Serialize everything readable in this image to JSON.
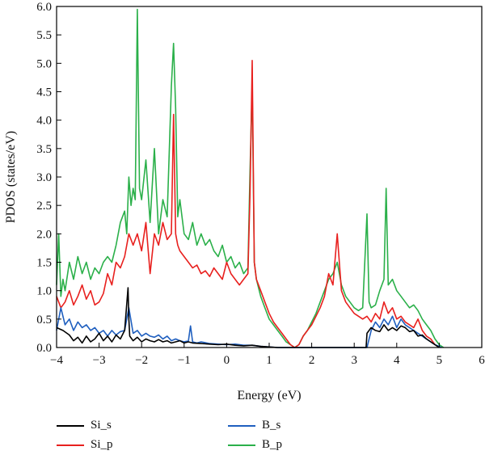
{
  "chart_data": {
    "type": "line",
    "title": "",
    "xlabel": "Energy (eV)",
    "ylabel": "PDOS (states/eV)",
    "xlim": [
      -4,
      6
    ],
    "ylim": [
      0,
      6
    ],
    "xticks": [
      "−4",
      "−3",
      "−2",
      "−1",
      "0",
      "1",
      "2",
      "3",
      "4",
      "5",
      "6"
    ],
    "yticks": [
      "0.0",
      "0.5",
      "1.0",
      "1.5",
      "2.0",
      "2.5",
      "3.0",
      "3.5",
      "4.0",
      "4.5",
      "5.0",
      "5.5",
      "6.0"
    ],
    "grid": false,
    "legend_position": "bottom",
    "series": [
      {
        "name": "Si_s",
        "color": "#000000",
        "x": [
          -4.0,
          -3.85,
          -3.7,
          -3.6,
          -3.5,
          -3.4,
          -3.3,
          -3.2,
          -3.1,
          -3.0,
          -2.9,
          -2.8,
          -2.7,
          -2.6,
          -2.5,
          -2.4,
          -2.32,
          -2.3,
          -2.28,
          -2.2,
          -2.1,
          -2.0,
          -1.9,
          -1.8,
          -1.7,
          -1.6,
          -1.5,
          -1.4,
          -1.3,
          -1.2,
          -1.1,
          -1.0,
          -0.9,
          -0.8,
          -0.6,
          -0.4,
          -0.2,
          0.0,
          0.2,
          0.4,
          0.6,
          0.8,
          1.0,
          1.2,
          1.4,
          1.6,
          1.8,
          2.0,
          2.2,
          2.4,
          2.6,
          2.8,
          3.0,
          3.2,
          3.28,
          3.3,
          3.4,
          3.5,
          3.6,
          3.7,
          3.8,
          3.9,
          4.0,
          4.1,
          4.2,
          4.3,
          4.4,
          4.5,
          4.6,
          4.7,
          4.8,
          4.9,
          5.0
        ],
        "y": [
          0.35,
          0.3,
          0.22,
          0.12,
          0.18,
          0.08,
          0.2,
          0.1,
          0.15,
          0.25,
          0.12,
          0.2,
          0.1,
          0.22,
          0.15,
          0.3,
          1.05,
          0.5,
          0.2,
          0.12,
          0.18,
          0.1,
          0.15,
          0.12,
          0.1,
          0.14,
          0.1,
          0.12,
          0.08,
          0.1,
          0.12,
          0.08,
          0.1,
          0.08,
          0.07,
          0.06,
          0.05,
          0.06,
          0.04,
          0.03,
          0.04,
          0.02,
          0.01,
          0.0,
          0.0,
          0.0,
          0.0,
          0.0,
          0.0,
          0.0,
          0.0,
          0.0,
          0.0,
          0.0,
          0.0,
          0.25,
          0.35,
          0.3,
          0.28,
          0.4,
          0.3,
          0.35,
          0.3,
          0.38,
          0.35,
          0.28,
          0.3,
          0.2,
          0.22,
          0.15,
          0.1,
          0.05,
          0.0
        ]
      },
      {
        "name": "Si_p",
        "color": "#e8201e",
        "x": [
          -4.0,
          -3.9,
          -3.8,
          -3.7,
          -3.6,
          -3.5,
          -3.4,
          -3.3,
          -3.2,
          -3.1,
          -3.0,
          -2.9,
          -2.8,
          -2.7,
          -2.6,
          -2.5,
          -2.4,
          -2.3,
          -2.2,
          -2.1,
          -2.0,
          -1.9,
          -1.8,
          -1.7,
          -1.6,
          -1.5,
          -1.4,
          -1.3,
          -1.25,
          -1.2,
          -1.15,
          -1.1,
          -1.0,
          -0.9,
          -0.8,
          -0.7,
          -0.6,
          -0.5,
          -0.4,
          -0.3,
          -0.2,
          -0.1,
          0.0,
          0.1,
          0.2,
          0.3,
          0.4,
          0.5,
          0.55,
          0.6,
          0.65,
          0.7,
          0.8,
          0.9,
          1.0,
          1.1,
          1.2,
          1.3,
          1.4,
          1.5,
          1.6,
          1.7,
          1.8,
          1.9,
          2.0,
          2.1,
          2.2,
          2.3,
          2.4,
          2.5,
          2.6,
          2.7,
          2.8,
          2.9,
          3.0,
          3.1,
          3.2,
          3.3,
          3.4,
          3.5,
          3.6,
          3.7,
          3.8,
          3.9,
          4.0,
          4.1,
          4.2,
          4.3,
          4.4,
          4.5,
          4.6,
          4.7,
          4.8,
          4.9,
          5.0
        ],
        "y": [
          0.9,
          0.7,
          0.8,
          1.0,
          0.75,
          0.9,
          1.1,
          0.85,
          1.0,
          0.75,
          0.8,
          0.95,
          1.3,
          1.1,
          1.5,
          1.4,
          1.6,
          2.0,
          1.8,
          2.0,
          1.7,
          2.2,
          1.3,
          2.0,
          1.8,
          2.2,
          1.9,
          2.0,
          4.1,
          2.0,
          1.8,
          1.7,
          1.6,
          1.5,
          1.4,
          1.45,
          1.3,
          1.35,
          1.25,
          1.4,
          1.3,
          1.2,
          1.5,
          1.3,
          1.2,
          1.1,
          1.2,
          1.3,
          2.7,
          5.05,
          1.5,
          1.2,
          1.0,
          0.8,
          0.6,
          0.45,
          0.35,
          0.25,
          0.15,
          0.05,
          0.0,
          0.05,
          0.2,
          0.3,
          0.4,
          0.55,
          0.7,
          0.9,
          1.3,
          1.1,
          2.0,
          1.0,
          0.8,
          0.7,
          0.6,
          0.55,
          0.5,
          0.55,
          0.45,
          0.6,
          0.5,
          0.8,
          0.6,
          0.7,
          0.5,
          0.55,
          0.45,
          0.4,
          0.35,
          0.5,
          0.3,
          0.2,
          0.15,
          0.05,
          0.0
        ]
      },
      {
        "name": "B_s",
        "color": "#1f5fbf",
        "x": [
          -4.0,
          -3.9,
          -3.8,
          -3.7,
          -3.6,
          -3.5,
          -3.4,
          -3.3,
          -3.2,
          -3.1,
          -3.0,
          -2.9,
          -2.8,
          -2.7,
          -2.6,
          -2.5,
          -2.4,
          -2.3,
          -2.2,
          -2.1,
          -2.0,
          -1.9,
          -1.8,
          -1.7,
          -1.6,
          -1.5,
          -1.4,
          -1.3,
          -1.2,
          -1.1,
          -1.0,
          -0.9,
          -0.85,
          -0.8,
          -0.7,
          -0.6,
          -0.4,
          -0.2,
          0.0,
          0.2,
          0.4,
          0.6,
          0.8,
          1.0,
          1.2,
          1.4,
          1.6,
          2.0,
          2.4,
          2.8,
          3.0,
          3.2,
          3.3,
          3.35,
          3.4,
          3.5,
          3.6,
          3.7,
          3.8,
          3.9,
          4.0,
          4.1,
          4.2,
          4.3,
          4.4,
          4.5,
          4.6,
          4.7,
          4.8,
          4.9,
          5.0,
          5.05
        ],
        "y": [
          0.3,
          0.7,
          0.4,
          0.5,
          0.3,
          0.45,
          0.35,
          0.4,
          0.3,
          0.35,
          0.25,
          0.3,
          0.2,
          0.3,
          0.22,
          0.28,
          0.3,
          0.7,
          0.25,
          0.3,
          0.2,
          0.25,
          0.2,
          0.18,
          0.22,
          0.15,
          0.2,
          0.12,
          0.15,
          0.12,
          0.1,
          0.12,
          0.38,
          0.1,
          0.08,
          0.1,
          0.07,
          0.06,
          0.05,
          0.06,
          0.04,
          0.04,
          0.02,
          0.01,
          0.0,
          0.0,
          0.0,
          0.0,
          0.0,
          0.0,
          0.0,
          0.0,
          0.0,
          0.15,
          0.3,
          0.45,
          0.35,
          0.5,
          0.4,
          0.55,
          0.35,
          0.5,
          0.4,
          0.35,
          0.3,
          0.25,
          0.2,
          0.15,
          0.1,
          0.05,
          0.02,
          0.0
        ]
      },
      {
        "name": "B_p",
        "color": "#2bb04a",
        "x": [
          -4.0,
          -3.95,
          -3.9,
          -3.85,
          -3.8,
          -3.7,
          -3.6,
          -3.5,
          -3.4,
          -3.3,
          -3.2,
          -3.1,
          -3.0,
          -2.9,
          -2.8,
          -2.7,
          -2.6,
          -2.5,
          -2.4,
          -2.35,
          -2.3,
          -2.25,
          -2.2,
          -2.15,
          -2.1,
          -2.05,
          -2.0,
          -1.9,
          -1.8,
          -1.7,
          -1.6,
          -1.5,
          -1.4,
          -1.3,
          -1.25,
          -1.2,
          -1.15,
          -1.1,
          -1.0,
          -0.9,
          -0.8,
          -0.7,
          -0.6,
          -0.5,
          -0.4,
          -0.3,
          -0.2,
          -0.1,
          0.0,
          0.1,
          0.2,
          0.3,
          0.4,
          0.5,
          0.55,
          0.6,
          0.65,
          0.7,
          0.8,
          0.9,
          1.0,
          1.1,
          1.2,
          1.3,
          1.4,
          1.5,
          1.6,
          1.7,
          1.8,
          1.9,
          2.0,
          2.1,
          2.2,
          2.3,
          2.4,
          2.5,
          2.6,
          2.7,
          2.8,
          2.9,
          3.0,
          3.1,
          3.2,
          3.3,
          3.35,
          3.4,
          3.5,
          3.6,
          3.7,
          3.75,
          3.8,
          3.9,
          4.0,
          4.1,
          4.2,
          4.3,
          4.4,
          4.5,
          4.6,
          4.7,
          4.8,
          4.9,
          5.0,
          5.1
        ],
        "y": [
          1.1,
          2.0,
          0.9,
          1.2,
          1.0,
          1.5,
          1.2,
          1.6,
          1.3,
          1.5,
          1.2,
          1.4,
          1.3,
          1.5,
          1.6,
          1.5,
          1.8,
          2.2,
          2.4,
          2.0,
          3.0,
          2.5,
          2.8,
          2.6,
          5.95,
          2.8,
          2.6,
          3.3,
          2.2,
          3.5,
          2.0,
          2.6,
          2.3,
          4.6,
          5.35,
          4.2,
          2.3,
          2.6,
          2.0,
          1.9,
          2.2,
          1.8,
          2.0,
          1.8,
          1.9,
          1.7,
          1.6,
          1.8,
          1.5,
          1.6,
          1.4,
          1.5,
          1.3,
          1.4,
          3.1,
          4.6,
          1.5,
          1.2,
          0.9,
          0.7,
          0.5,
          0.4,
          0.3,
          0.2,
          0.1,
          0.05,
          0.0,
          0.05,
          0.2,
          0.3,
          0.45,
          0.6,
          0.8,
          1.0,
          1.2,
          1.3,
          1.5,
          1.1,
          0.9,
          0.8,
          0.7,
          0.65,
          0.7,
          2.35,
          0.8,
          0.7,
          0.75,
          1.0,
          1.2,
          2.8,
          1.1,
          1.2,
          1.0,
          0.9,
          0.8,
          0.7,
          0.75,
          0.65,
          0.5,
          0.4,
          0.3,
          0.15,
          0.05,
          0.0
        ]
      }
    ]
  }
}
